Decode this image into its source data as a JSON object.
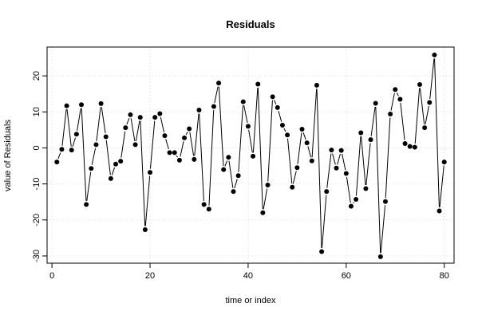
{
  "chart_data": {
    "type": "line",
    "title": "Residuals",
    "xlabel": "time or index",
    "ylabel": "value of Residuals",
    "xlim": [
      -1,
      82
    ],
    "ylim": [
      -32,
      28
    ],
    "x_ticks": [
      0,
      20,
      40,
      60,
      80
    ],
    "y_ticks": [
      -30,
      -20,
      -10,
      0,
      10,
      20
    ],
    "grid": true,
    "grid_style": "dotted",
    "marker": "filled-circle",
    "line_style": "connected, gaps around points",
    "colors": {
      "series": "#000000",
      "grid": "#d9d9d9",
      "frame": "#000000"
    },
    "series": [
      {
        "x": [
          1,
          2,
          3,
          4,
          5,
          6,
          7,
          8,
          9,
          10,
          11,
          12,
          13,
          14,
          15,
          16,
          17,
          18,
          19,
          20,
          21,
          22,
          23,
          24,
          25,
          26,
          27,
          28,
          29,
          30,
          31,
          32,
          33,
          34,
          35,
          36,
          37,
          38,
          39,
          40,
          41,
          42,
          43,
          44,
          45,
          46,
          47,
          48,
          49,
          50,
          51,
          52,
          53,
          54,
          55,
          56,
          57,
          58,
          59,
          60,
          61,
          62,
          63,
          64,
          65,
          66,
          67,
          68,
          69,
          70,
          71,
          72,
          73,
          74,
          75,
          76,
          77,
          78,
          79,
          80
        ],
        "y": [
          -3.9,
          -0.4,
          11.7,
          -0.6,
          3.8,
          12.0,
          -15.7,
          -5.7,
          0.9,
          12.3,
          3.1,
          -8.5,
          -4.5,
          -3.7,
          5.6,
          9.2,
          0.9,
          8.5,
          -22.7,
          -6.8,
          8.5,
          9.5,
          3.4,
          -1.3,
          -1.3,
          -3.4,
          2.8,
          5.3,
          -3.2,
          10.5,
          -15.7,
          -17.0,
          11.5,
          18.0,
          -6.0,
          -2.6,
          -12.1,
          -7.7,
          12.8,
          6.0,
          -2.3,
          17.7,
          -18.0,
          -10.3,
          14.2,
          11.2,
          6.3,
          3.6,
          -10.9,
          -5.5,
          5.2,
          1.4,
          -3.6,
          17.4,
          -28.8,
          -12.1,
          -0.6,
          -5.6,
          -0.7,
          -7.1,
          -16.2,
          -14.3,
          4.2,
          -11.3,
          2.3,
          12.4,
          -30.2,
          -14.9,
          9.4,
          16.2,
          13.5,
          1.2,
          0.4,
          0.2,
          17.6,
          5.6,
          12.6,
          25.8,
          -17.5,
          -3.9
        ]
      }
    ]
  }
}
